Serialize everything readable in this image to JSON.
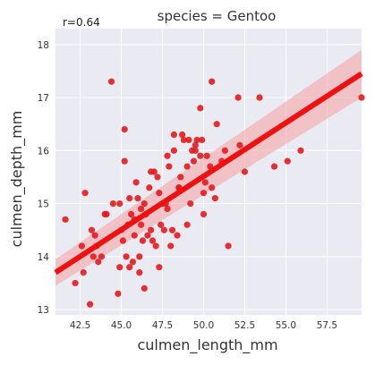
{
  "chart_data": {
    "type": "scatter",
    "title": "species = Gentoo",
    "xlabel": "culmen_length_mm",
    "ylabel": "culmen_depth_mm",
    "annotation": "r=0.64",
    "xlim": [
      41.0,
      59.6
    ],
    "ylim": [
      12.9,
      18.3
    ],
    "xticks": [
      "42.5",
      "45.0",
      "47.5",
      "50.0",
      "52.5",
      "55.0",
      "57.5"
    ],
    "yticks": [
      "13",
      "14",
      "15",
      "16",
      "17",
      "18"
    ],
    "grid": true,
    "colors": {
      "points": "#e41a1c",
      "line": "#ee1111",
      "band": "#f4a0a0",
      "plot_bg": "#eaeaf2",
      "grid": "#ffffff"
    },
    "regression": {
      "x": [
        41.0,
        59.6
      ],
      "y": [
        13.7,
        17.45
      ],
      "ci_lower": [
        13.45,
        17.0
      ],
      "ci_upper": [
        13.95,
        17.9
      ]
    },
    "points": {
      "x": [
        41.6,
        42.2,
        42.6,
        42.7,
        42.8,
        43.1,
        43.2,
        43.3,
        43.4,
        43.5,
        43.8,
        44.1,
        44.4,
        44.5,
        44.8,
        44.9,
        45.0,
        45.1,
        45.2,
        45.3,
        45.4,
        45.5,
        45.6,
        45.7,
        45.8,
        45.9,
        46.0,
        46.1,
        46.2,
        46.3,
        46.4,
        46.5,
        46.6,
        46.7,
        46.8,
        46.9,
        47.0,
        47.1,
        47.2,
        47.3,
        47.4,
        47.5,
        47.6,
        47.7,
        47.8,
        47.9,
        48.0,
        48.1,
        48.2,
        48.4,
        48.5,
        48.6,
        48.7,
        48.8,
        49.0,
        49.1,
        49.2,
        49.3,
        49.4,
        49.5,
        49.6,
        49.8,
        49.9,
        50.0,
        50.1,
        50.2,
        50.4,
        50.5,
        50.7,
        50.8,
        51.1,
        51.3,
        51.5,
        52.1,
        52.2,
        52.5,
        53.4,
        54.3,
        55.1,
        55.9,
        59.6,
        44.0,
        45.2,
        45.8,
        46.2,
        46.8,
        47.3,
        48.2,
        49.0,
        49.5,
        50.0,
        50.5,
        43.6,
        45.5,
        46.1,
        47.8,
        48.5,
        49.8,
        44.9,
        46.4
      ],
      "y": [
        14.7,
        13.5,
        14.2,
        13.7,
        15.2,
        13.1,
        14.5,
        14.0,
        14.4,
        14.2,
        14.0,
        14.8,
        17.3,
        15.0,
        13.3,
        13.8,
        14.5,
        14.3,
        15.8,
        14.0,
        14.6,
        13.8,
        14.8,
        13.9,
        14.7,
        15.4,
        15.1,
        13.7,
        14.6,
        14.3,
        15.0,
        14.8,
        14.4,
        15.3,
        15.6,
        14.3,
        15.6,
        14.2,
        15.5,
        13.8,
        14.6,
        15.0,
        14.5,
        15.0,
        15.9,
        15.7,
        14.2,
        14.5,
        16.0,
        14.4,
        15.3,
        15.5,
        16.3,
        16.2,
        15.7,
        16.2,
        15.0,
        16.0,
        15.8,
        16.1,
        16.2,
        15.9,
        16.2,
        14.8,
        15.4,
        15.9,
        15.7,
        15.3,
        15.1,
        16.5,
        15.8,
        16.0,
        14.2,
        17.0,
        16.1,
        15.6,
        17.0,
        15.7,
        15.8,
        16.0,
        17.0,
        14.8,
        16.4,
        14.4,
        14.9,
        14.5,
        15.2,
        16.3,
        14.6,
        16.0,
        15.2,
        17.3,
        13.9,
        15.1,
        14.0,
        14.9,
        15.3,
        16.8,
        15.0,
        13.4
      ]
    }
  }
}
